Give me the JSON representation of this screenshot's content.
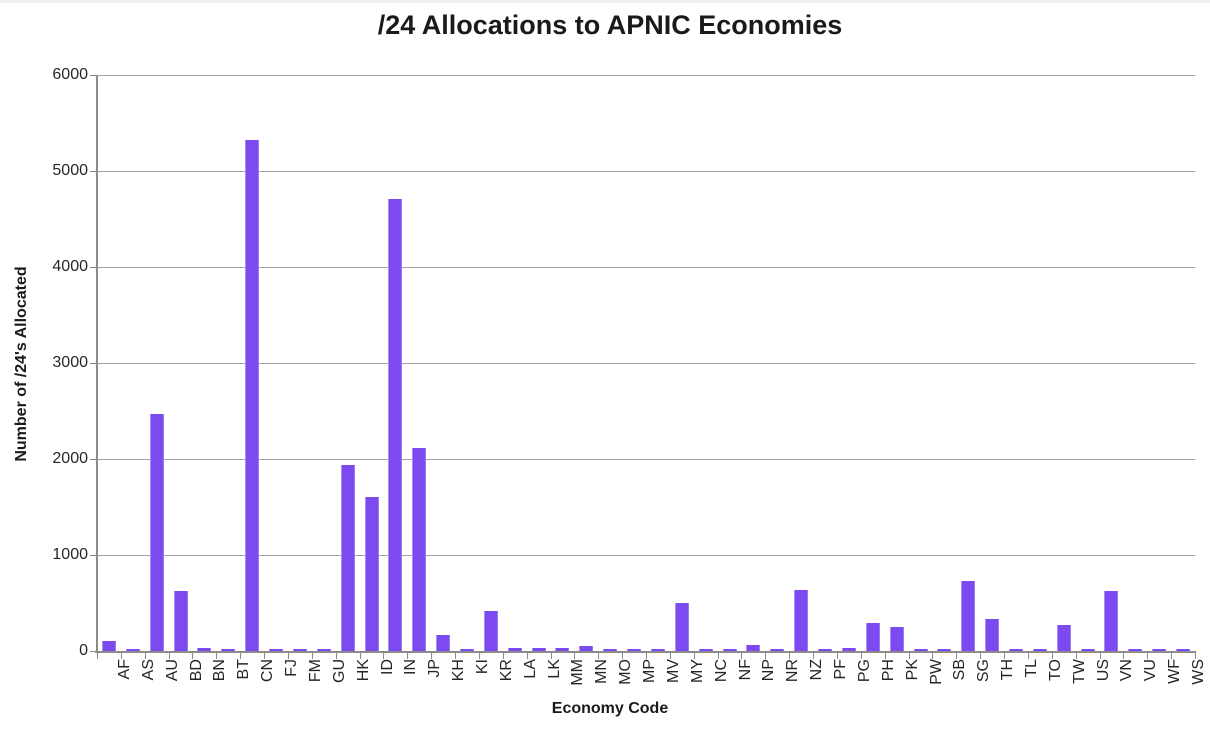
{
  "title": "/24 Allocations to APNIC Economies",
  "chart_data": {
    "type": "bar",
    "title": "/24 Allocations to APNIC Economies",
    "xlabel": "Economy Code",
    "ylabel": "Number of /24's Allocated",
    "ylim": [
      0,
      6000
    ],
    "yticks": [
      0,
      1000,
      2000,
      3000,
      4000,
      5000,
      6000
    ],
    "grid": true,
    "legend": false,
    "bar_color": "#7b4bef",
    "gridline_color": "#a6a6a6",
    "axis_color": "#8c8c8c",
    "categories": [
      "AF",
      "AS",
      "AU",
      "BD",
      "BN",
      "BT",
      "CN",
      "FJ",
      "FM",
      "GU",
      "HK",
      "ID",
      "IN",
      "JP",
      "KH",
      "KI",
      "KR",
      "LA",
      "LK",
      "MM",
      "MN",
      "MO",
      "MP",
      "MV",
      "MY",
      "NC",
      "NF",
      "NP",
      "NR",
      "NZ",
      "PF",
      "PG",
      "PH",
      "PK",
      "PW",
      "SB",
      "SG",
      "TH",
      "TL",
      "TO",
      "TW",
      "US",
      "VN",
      "VU",
      "WF",
      "WS"
    ],
    "values": [
      105,
      20,
      2470,
      620,
      35,
      18,
      5320,
      18,
      18,
      25,
      1940,
      1600,
      4710,
      2110,
      165,
      15,
      420,
      30,
      35,
      35,
      55,
      18,
      18,
      18,
      500,
      15,
      15,
      60,
      15,
      640,
      15,
      30,
      290,
      255,
      15,
      15,
      730,
      330,
      15,
      15,
      270,
      18,
      630,
      15,
      15,
      18
    ]
  }
}
